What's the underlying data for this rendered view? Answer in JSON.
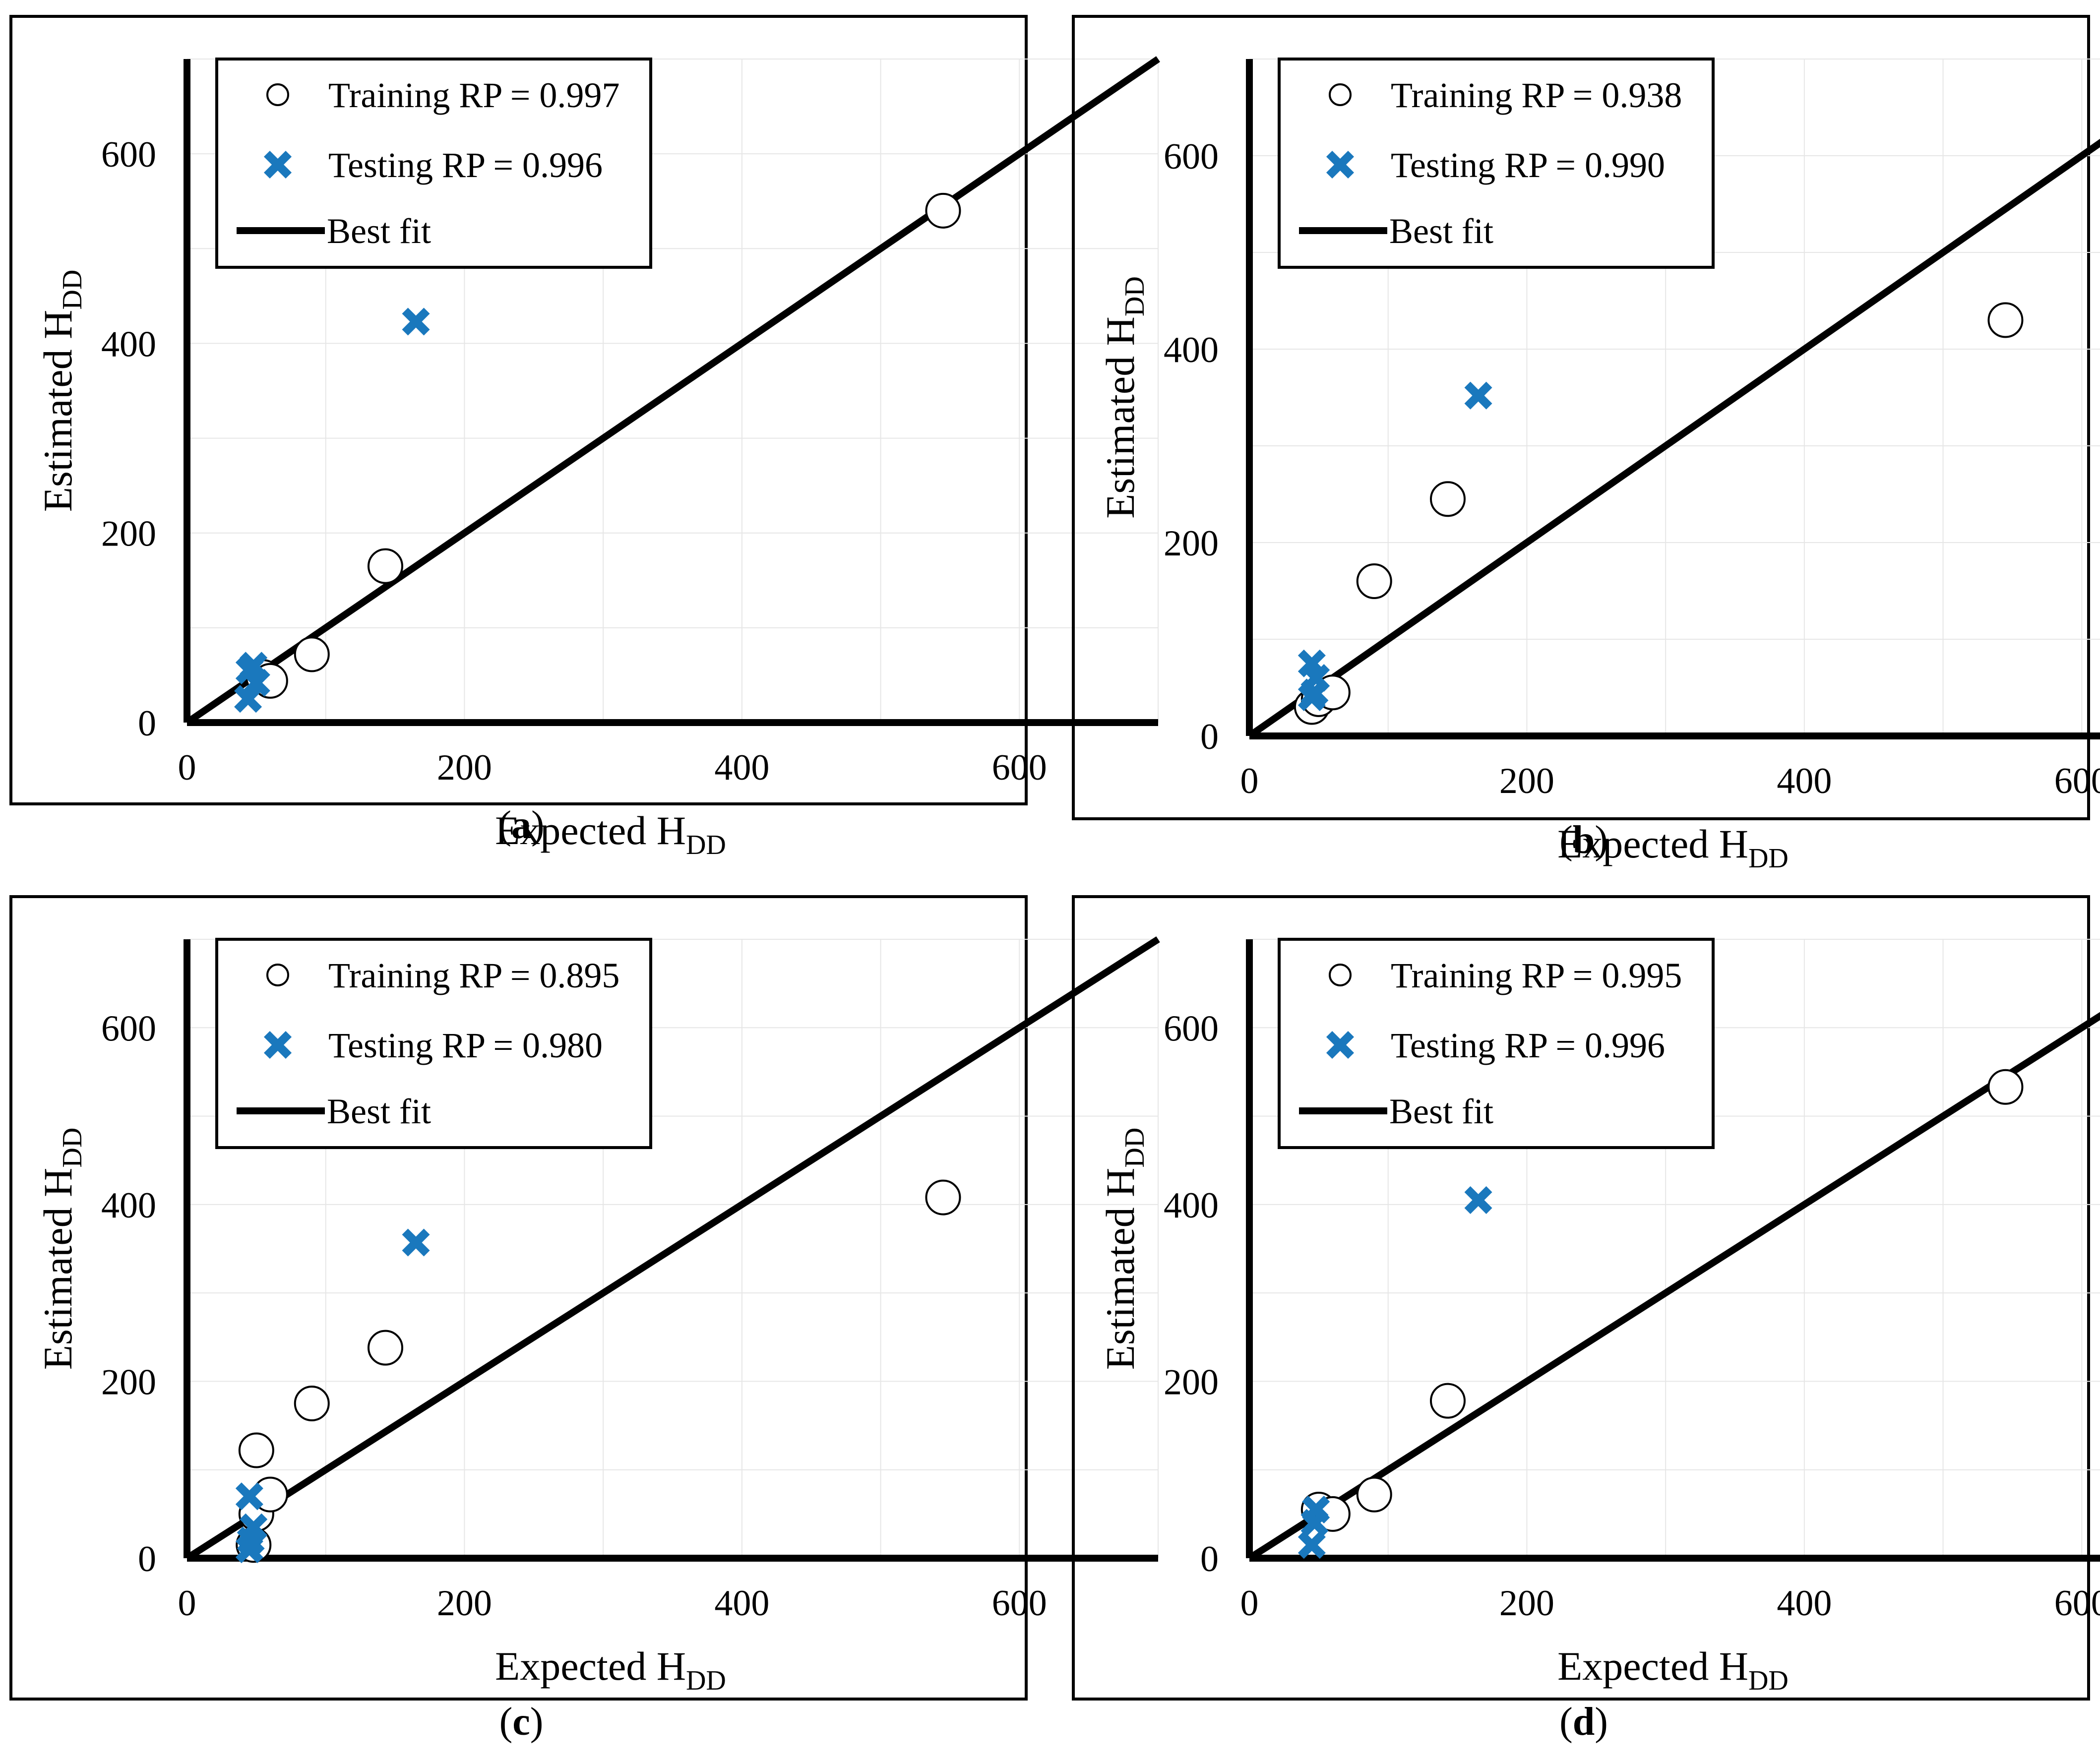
{
  "panels": [
    {
      "caption_letter": "a",
      "legend": {
        "training": "Training RP = 0.997",
        "testing": "Testing RP = 0.996",
        "fit": "Best fit"
      },
      "training": [
        [
          55,
          48
        ],
        [
          60,
          44
        ],
        [
          90,
          72
        ],
        [
          143,
          165
        ],
        [
          545,
          540
        ]
      ],
      "testing": [
        [
          45,
          55
        ],
        [
          48,
          60
        ],
        [
          50,
          42
        ],
        [
          44,
          25
        ],
        [
          165,
          423
        ]
      ]
    },
    {
      "caption_letter": "b",
      "legend": {
        "training": "Training RP = 0.938",
        "testing": "Testing RP = 0.990",
        "fit": "Best fit"
      },
      "training": [
        [
          45,
          30
        ],
        [
          50,
          38
        ],
        [
          60,
          45
        ],
        [
          90,
          160
        ],
        [
          143,
          245
        ],
        [
          545,
          430
        ]
      ],
      "testing": [
        [
          45,
          75
        ],
        [
          48,
          60
        ],
        [
          47,
          45
        ],
        [
          45,
          40
        ],
        [
          165,
          352
        ]
      ]
    },
    {
      "caption_letter": "c",
      "legend": {
        "training": "Training RP = 0.895",
        "testing": "Testing RP = 0.980",
        "fit": "Best fit"
      },
      "training": [
        [
          48,
          15
        ],
        [
          50,
          50
        ],
        [
          60,
          72
        ],
        [
          50,
          122
        ],
        [
          90,
          175
        ],
        [
          143,
          238
        ],
        [
          545,
          408
        ]
      ],
      "testing": [
        [
          45,
          70
        ],
        [
          48,
          35
        ],
        [
          46,
          20
        ],
        [
          45,
          10
        ],
        [
          165,
          357
        ]
      ]
    },
    {
      "caption_letter": "d",
      "legend": {
        "training": "Training RP = 0.995",
        "testing": "Testing RP = 0.996",
        "fit": "Best fit"
      },
      "training": [
        [
          50,
          55
        ],
        [
          60,
          50
        ],
        [
          90,
          72
        ],
        [
          143,
          178
        ],
        [
          545,
          533
        ]
      ],
      "testing": [
        [
          48,
          55
        ],
        [
          47,
          40
        ],
        [
          45,
          15
        ],
        [
          165,
          405
        ]
      ]
    }
  ],
  "chart_data": [
    {
      "type": "scatter",
      "panel": "a",
      "xlabel": "Expected HDD",
      "ylabel": "Estimated HDD",
      "xlim": [
        0,
        700
      ],
      "ylim": [
        0,
        700
      ],
      "xticks": [
        "0",
        "200",
        "400",
        "600"
      ],
      "yticks": [
        "0",
        "200",
        "400",
        "600"
      ],
      "series": [
        {
          "name": "Training RP = 0.997",
          "x": [
            55,
            60,
            90,
            143,
            545
          ],
          "y": [
            48,
            44,
            72,
            165,
            540
          ]
        },
        {
          "name": "Testing RP = 0.996",
          "x": [
            45,
            48,
            50,
            44,
            165
          ],
          "y": [
            55,
            60,
            42,
            25,
            423
          ]
        },
        {
          "name": "Best fit",
          "x": [
            0,
            700
          ],
          "y": [
            0,
            700
          ]
        }
      ]
    },
    {
      "type": "scatter",
      "panel": "b",
      "xlabel": "Expected HDD",
      "ylabel": "Estimated HDD",
      "xlim": [
        0,
        700
      ],
      "ylim": [
        0,
        700
      ],
      "xticks": [
        "0",
        "200",
        "400",
        "600"
      ],
      "yticks": [
        "0",
        "200",
        "400",
        "600"
      ],
      "series": [
        {
          "name": "Training RP = 0.938",
          "x": [
            45,
            50,
            60,
            90,
            143,
            545
          ],
          "y": [
            30,
            38,
            45,
            160,
            245,
            430
          ]
        },
        {
          "name": "Testing RP = 0.990",
          "x": [
            45,
            48,
            47,
            45,
            165
          ],
          "y": [
            75,
            60,
            45,
            40,
            352
          ]
        },
        {
          "name": "Best fit",
          "x": [
            0,
            700
          ],
          "y": [
            0,
            700
          ]
        }
      ]
    },
    {
      "type": "scatter",
      "panel": "c",
      "xlabel": "Expected HDD",
      "ylabel": "Estimated HDD",
      "xlim": [
        0,
        700
      ],
      "ylim": [
        0,
        700
      ],
      "xticks": [
        "0",
        "200",
        "400",
        "600"
      ],
      "yticks": [
        "0",
        "200",
        "400",
        "600"
      ],
      "series": [
        {
          "name": "Training RP = 0.895",
          "x": [
            48,
            50,
            60,
            50,
            90,
            143,
            545
          ],
          "y": [
            15,
            50,
            72,
            122,
            175,
            238,
            408
          ]
        },
        {
          "name": "Testing RP = 0.980",
          "x": [
            45,
            48,
            46,
            45,
            165
          ],
          "y": [
            70,
            35,
            20,
            10,
            357
          ]
        },
        {
          "name": "Best fit",
          "x": [
            0,
            700
          ],
          "y": [
            0,
            700
          ]
        }
      ]
    },
    {
      "type": "scatter",
      "panel": "d",
      "xlabel": "Expected HDD",
      "ylabel": "Estimated HDD",
      "xlim": [
        0,
        700
      ],
      "ylim": [
        0,
        700
      ],
      "xticks": [
        "0",
        "200",
        "400",
        "600"
      ],
      "yticks": [
        "0",
        "200",
        "400",
        "600"
      ],
      "series": [
        {
          "name": "Training RP = 0.995",
          "x": [
            50,
            60,
            90,
            143,
            545
          ],
          "y": [
            55,
            50,
            72,
            178,
            533
          ]
        },
        {
          "name": "Testing RP = 0.996",
          "x": [
            48,
            47,
            45,
            165
          ],
          "y": [
            55,
            40,
            15,
            405
          ]
        },
        {
          "name": "Best fit",
          "x": [
            0,
            700
          ],
          "y": [
            0,
            700
          ]
        }
      ]
    }
  ],
  "axes": {
    "xlabel_main": "Expected H",
    "ylabel_main": "Estimated H",
    "subscript": "DD",
    "xlim": [
      0,
      700
    ],
    "ylim": [
      0,
      700
    ],
    "ticks": [
      "0",
      "200",
      "400",
      "600"
    ],
    "gridlines": [
      100,
      200,
      300,
      400,
      500,
      600,
      700
    ]
  },
  "caption_open": "(",
  "caption_close": ")"
}
